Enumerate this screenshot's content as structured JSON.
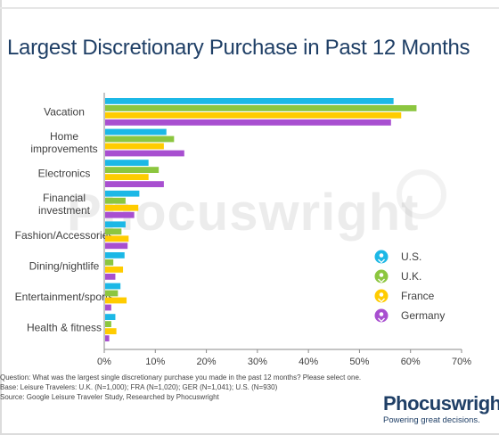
{
  "title": "Largest Discretionary Purchase in Past 12 Months",
  "colors": {
    "us": "#1cb8e6",
    "uk": "#8cc63f",
    "france": "#ffcc00",
    "germany": "#a84fd0",
    "title": "#1f3f66"
  },
  "chart_data": {
    "type": "bar",
    "orientation": "horizontal",
    "title": "Largest Discretionary Purchase in Past 12 Months",
    "categories": [
      "Vacation",
      "Home improvements",
      "Electronics",
      "Financial investment",
      "Fashion/Accessories",
      "Dining/nightlife",
      "Entertainment/sports",
      "Health & fitness"
    ],
    "category_lines": [
      [
        "Vacation"
      ],
      [
        "Home",
        "improvements"
      ],
      [
        "Electronics"
      ],
      [
        "Financial",
        "investment"
      ],
      [
        "Fashion/Accessories"
      ],
      [
        "Dining/nightlife"
      ],
      [
        "Entertainment/sports"
      ],
      [
        "Health & fitness"
      ]
    ],
    "series": [
      {
        "name": "U.S.",
        "color": "#1cb8e6",
        "values": [
          56.5,
          12,
          8.5,
          6.7,
          4,
          3.8,
          3,
          2
        ]
      },
      {
        "name": "U.K.",
        "color": "#8cc63f",
        "values": [
          61,
          13.5,
          10.5,
          4,
          3.2,
          1.6,
          2.5,
          1.2
        ]
      },
      {
        "name": "France",
        "color": "#ffcc00",
        "values": [
          58,
          11.5,
          8.5,
          6.5,
          4.6,
          3.5,
          4.2,
          2.2
        ]
      },
      {
        "name": "Germany",
        "color": "#a84fd0",
        "values": [
          56,
          15.5,
          11.5,
          5.7,
          4.4,
          2,
          1.2,
          0.8
        ]
      }
    ],
    "xlim": [
      0,
      70
    ],
    "ticks": [
      "0%",
      "10%",
      "20%",
      "30%",
      "40%",
      "50%",
      "60%",
      "70%"
    ],
    "legend_position": "right",
    "grid": false
  },
  "footnotes": [
    "Question: What was the largest single discretionary purchase you made in the past 12 months? Please select one.",
    "Base: Leisure Travelers: U.K. (N=1,000); FRA (N=1,020); GER (N=1,041); U.S. (N=930)",
    "Source: Google Leisure Traveler Study, Researched by Phocuswright"
  ],
  "brand": {
    "name": "Phocuswright",
    "tagline": "Powering great decisions."
  },
  "watermark": "Phocuswright"
}
